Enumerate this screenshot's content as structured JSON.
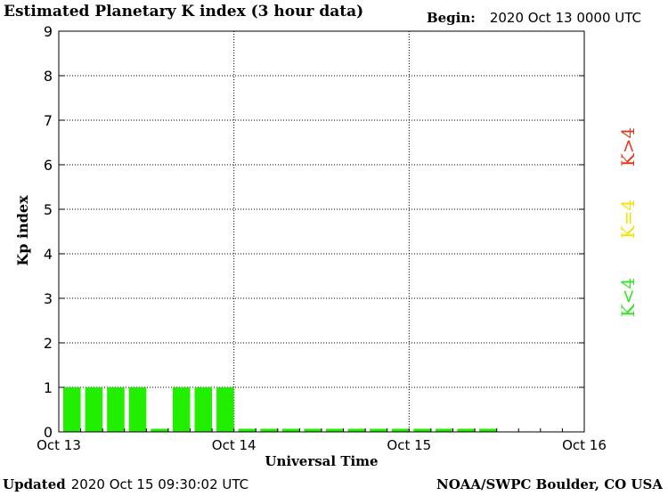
{
  "header": {
    "title": "Estimated Planetary K index (3 hour data)",
    "begin_label": "Begin:",
    "begin_value": "2020 Oct 13 0000 UTC"
  },
  "footer": {
    "updated_label": "Updated",
    "updated_value": "2020 Oct 15 09:30:02 UTC",
    "credit": "NOAA/SWPC Boulder, CO USA"
  },
  "legend": {
    "k_greater": "K>4",
    "k_equal": "K=4",
    "k_less": "K<4",
    "colors": {
      "k_greater": "#e8361e",
      "k_equal": "#f5e100",
      "k_less": "#2ee61e"
    }
  },
  "chart_data": {
    "type": "bar",
    "title": "Estimated Planetary K index (3 hour data)",
    "xlabel": "Universal Time",
    "ylabel": "Kp index",
    "ylim": [
      0,
      9
    ],
    "yticks": [
      "0",
      "1",
      "2",
      "3",
      "4",
      "5",
      "6",
      "7",
      "8",
      "9"
    ],
    "xtick_labels": [
      "Oct 13",
      "Oct 14",
      "Oct 15",
      "Oct 16"
    ],
    "grid": "dotted",
    "bar_color": "#22ee00",
    "interval_hours": 3,
    "series": [
      {
        "values": [
          1,
          1,
          1,
          1,
          0.07,
          1,
          1,
          1,
          0.07,
          0.07,
          0.07,
          0.07,
          0.07,
          0.07,
          0.07,
          0.07,
          0.07,
          0.07,
          0.07,
          0.07
        ]
      }
    ]
  }
}
